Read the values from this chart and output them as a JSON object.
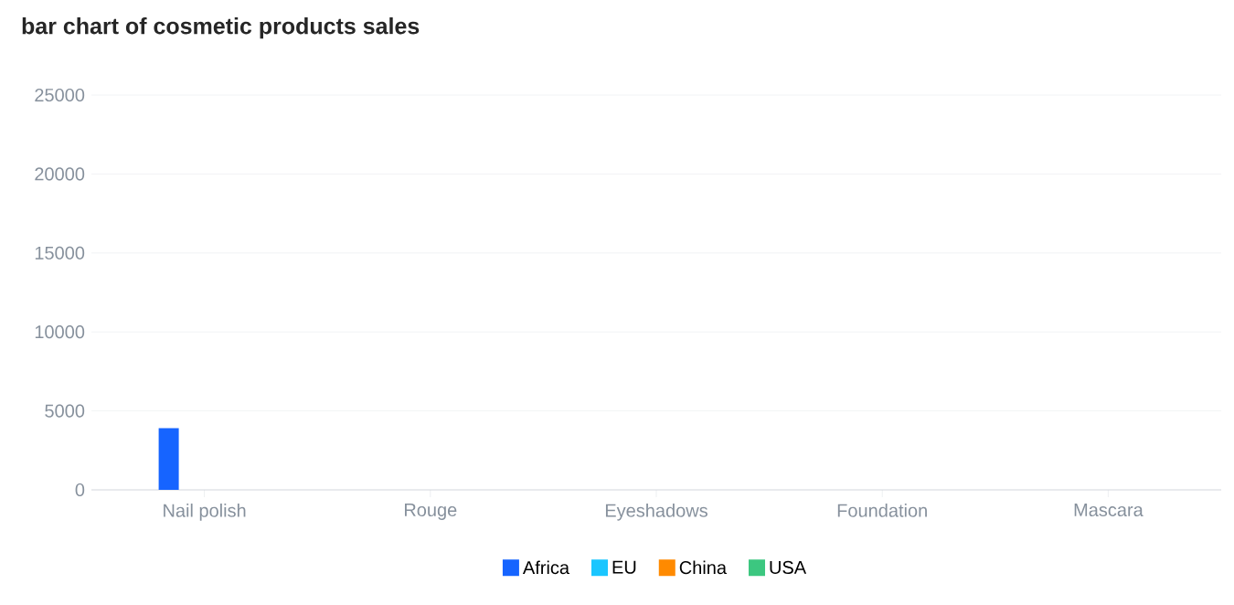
{
  "chart_data": {
    "type": "bar",
    "title": "bar chart of cosmetic products sales",
    "categories": [
      "Nail polish",
      "Rouge",
      "Eyeshadows",
      "Foundation",
      "Mascara"
    ],
    "series": [
      {
        "name": "Africa",
        "color": "#1664ff",
        "values": [
          3900,
          0,
          0,
          0,
          0
        ]
      },
      {
        "name": "EU",
        "color": "#1ac6ff",
        "values": [
          0,
          0,
          0,
          0,
          0
        ]
      },
      {
        "name": "China",
        "color": "#ff8a00",
        "values": [
          0,
          0,
          0,
          0,
          0
        ]
      },
      {
        "name": "USA",
        "color": "#3cc780",
        "values": [
          0,
          0,
          0,
          0,
          0
        ]
      }
    ],
    "ylim": [
      0,
      25000
    ],
    "yticks": [
      0,
      5000,
      10000,
      15000,
      20000,
      25000
    ],
    "grid": "y",
    "legend": "bottom"
  }
}
